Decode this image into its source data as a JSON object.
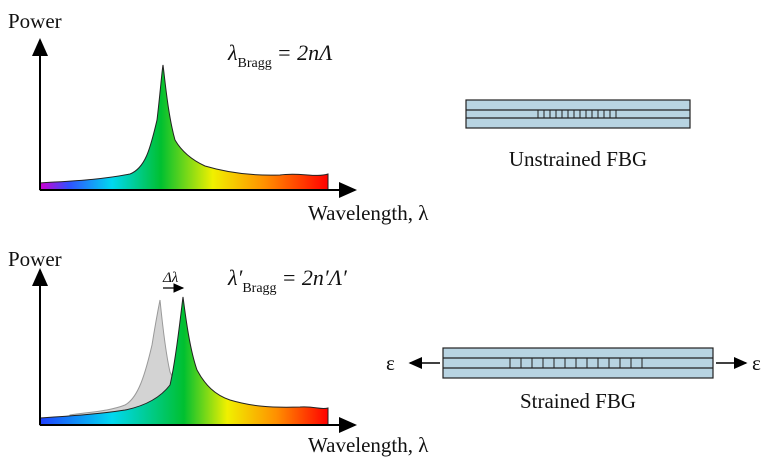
{
  "top_panel": {
    "y_axis_label": "Power",
    "x_axis_label": "Wavelength, λ",
    "equation": {
      "symbol": "λ",
      "subscript": "Bragg",
      "rhs": "= 2nΛ"
    }
  },
  "top_fiber": {
    "caption": "Unstrained FBG"
  },
  "bottom_panel": {
    "y_axis_label": "Power",
    "x_axis_label": "Wavelength, λ",
    "shift_label": "Δλ",
    "equation": {
      "symbol": "λ′",
      "subscript": "Bragg",
      "rhs": "= 2n′Λ′"
    }
  },
  "bottom_fiber": {
    "caption": "Strained FBG",
    "strain_left": "ε",
    "strain_right": "ε"
  }
}
